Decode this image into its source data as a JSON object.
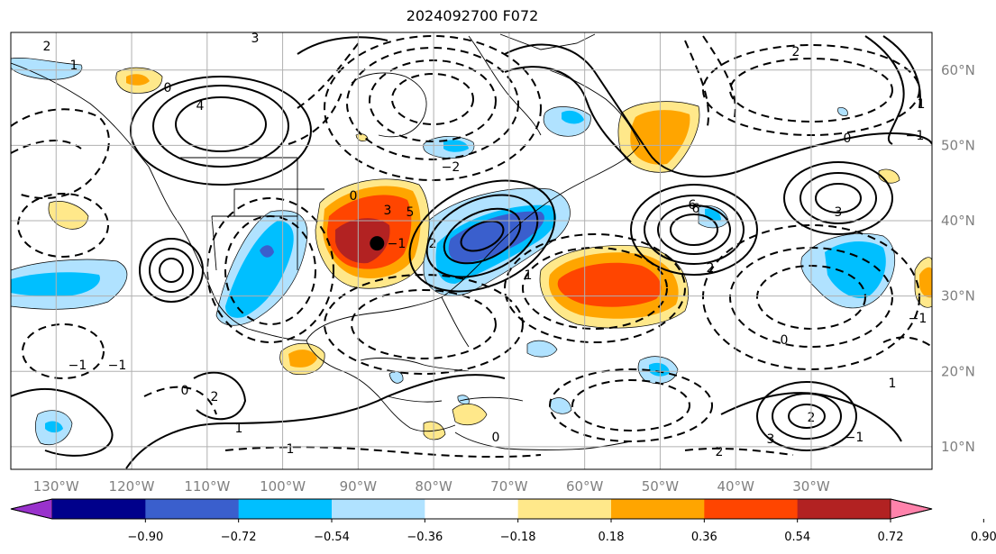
{
  "title": "2024092700 F072",
  "map": {
    "lon_labels": [
      "130°W",
      "120°W",
      "110°W",
      "100°W",
      "90°W",
      "80°W",
      "70°W",
      "60°W",
      "50°W",
      "40°W",
      "30°W"
    ],
    "lat_labels": [
      "60°N",
      "50°N",
      "40°N",
      "30°N",
      "20°N",
      "10°N"
    ],
    "lon_range": [
      -136,
      -14
    ],
    "lat_range": [
      7,
      65
    ],
    "grid": true,
    "marker": {
      "lon": -87.5,
      "lat": 37
    }
  },
  "colorbar": {
    "ticks": [
      "−0.90",
      "−0.72",
      "−0.54",
      "−0.36",
      "−0.18",
      "0.18",
      "0.36",
      "0.54",
      "0.72",
      "0.90"
    ],
    "colors": [
      "#9932cc",
      "#00008b",
      "#3a5fcd",
      "#00bfff",
      "#b0e2ff",
      "#ffffff",
      "#ffe88a",
      "#ffa500",
      "#ff4500",
      "#b22222",
      "#ff82ab"
    ]
  },
  "colors": {
    "contour": "#000000",
    "grid": "#b0b0b0",
    "tick_text": "#808080"
  },
  "contour_labels": [
    "3",
    "2",
    "1",
    "0",
    "4",
    "−1",
    "5",
    "6",
    "3",
    "2",
    "1",
    "0",
    "−1",
    "−2",
    "1",
    "2",
    "3",
    "0",
    "−1",
    "2",
    "1",
    "0",
    "−1",
    "2",
    "0",
    "−1",
    "1",
    "6",
    "2",
    "3",
    "2",
    "1",
    "0",
    "−1"
  ]
}
